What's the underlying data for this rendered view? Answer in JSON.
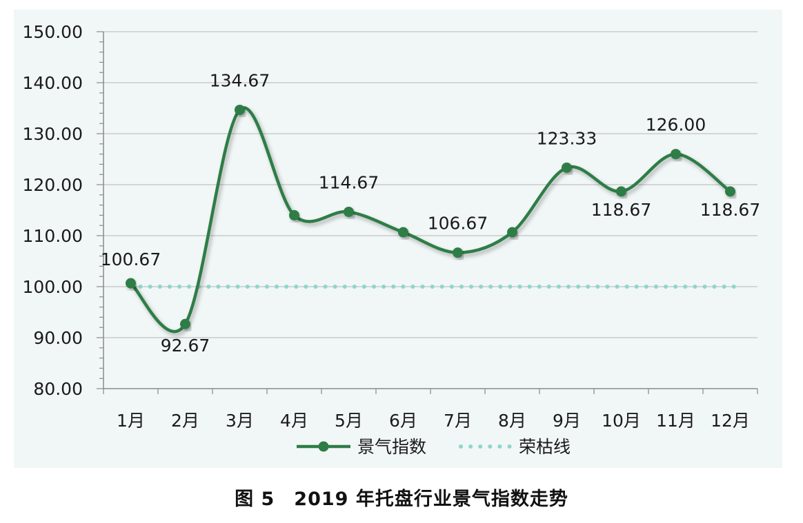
{
  "chart_data": {
    "type": "line",
    "categories": [
      "1月",
      "2月",
      "3月",
      "4月",
      "5月",
      "6月",
      "7月",
      "8月",
      "9月",
      "10月",
      "11月",
      "12月"
    ],
    "series": [
      {
        "name": "景气指数",
        "values": [
          100.67,
          92.67,
          134.67,
          114.0,
          114.67,
          110.67,
          106.67,
          110.67,
          123.33,
          118.67,
          126.0,
          118.67
        ],
        "color": "#2e7d46"
      },
      {
        "name": "荣枯线",
        "values": [
          100,
          100,
          100,
          100,
          100,
          100,
          100,
          100,
          100,
          100,
          100,
          100
        ],
        "color": "#8fd6cc"
      }
    ],
    "data_labels": [
      {
        "index": 0,
        "text": "100.67"
      },
      {
        "index": 1,
        "text": "92.67"
      },
      {
        "index": 2,
        "text": "134.67"
      },
      {
        "index": 4,
        "text": "114.67"
      },
      {
        "index": 6,
        "text": "106.67"
      },
      {
        "index": 8,
        "text": "123.33"
      },
      {
        "index": 9,
        "text": "118.67"
      },
      {
        "index": 10,
        "text": "126.00"
      },
      {
        "index": 11,
        "text": "118.67"
      }
    ],
    "ylim": [
      80,
      150
    ],
    "yticks": [
      "80.00",
      "90.00",
      "100.00",
      "110.00",
      "120.00",
      "130.00",
      "140.00",
      "150.00"
    ],
    "grid": true,
    "legend": "bottom",
    "title": "",
    "xlabel": "",
    "ylabel": ""
  },
  "caption": {
    "text": "图 5　2019 年托盘行业景气指数走势"
  }
}
